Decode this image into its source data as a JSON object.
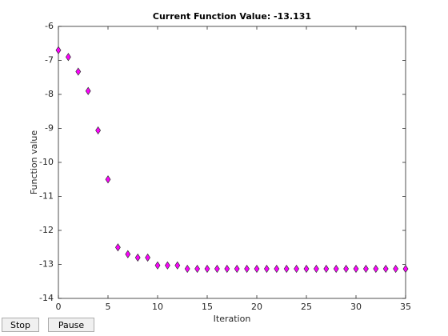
{
  "chart_data": {
    "type": "scatter",
    "title": "Current Function Value: -13.131",
    "xlabel": "Iteration",
    "ylabel": "Function value",
    "x": [
      0,
      1,
      2,
      3,
      4,
      5,
      6,
      7,
      8,
      9,
      10,
      11,
      12,
      13,
      14,
      15,
      16,
      17,
      18,
      19,
      20,
      21,
      22,
      23,
      24,
      25,
      26,
      27,
      28,
      29,
      30,
      31,
      32,
      33,
      34,
      35
    ],
    "values": [
      -6.7,
      -6.9,
      -7.33,
      -7.9,
      -9.06,
      -10.5,
      -12.5,
      -12.7,
      -12.8,
      -12.8,
      -13.03,
      -13.03,
      -13.03,
      -13.13,
      -13.13,
      -13.13,
      -13.13,
      -13.13,
      -13.13,
      -13.13,
      -13.13,
      -13.13,
      -13.13,
      -13.13,
      -13.13,
      -13.13,
      -13.13,
      -13.13,
      -13.13,
      -13.13,
      -13.13,
      -13.13,
      -13.13,
      -13.13,
      -13.13,
      -13.131
    ],
    "color": "#ff00ff",
    "xlim": [
      0,
      35
    ],
    "xticks": [
      0,
      5,
      10,
      15,
      20,
      25,
      30,
      35
    ],
    "ylim": [
      -14,
      -6
    ],
    "yticks": [
      -14,
      -13,
      -12,
      -11,
      -10,
      -9,
      -8,
      -7,
      -6
    ],
    "grid": false
  },
  "buttons": [
    "Stop",
    "Pause"
  ]
}
